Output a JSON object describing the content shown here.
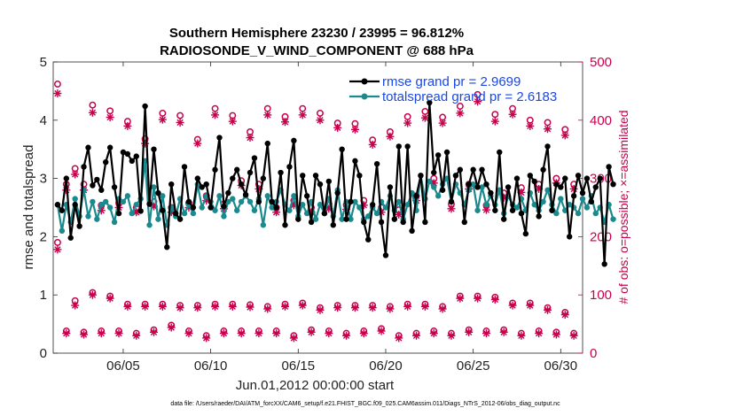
{
  "chart_data": {
    "type": "line",
    "title": "Southern Hemisphere 23230 / 23995 = 96.812%",
    "subtitle": "RADIOSONDE_V_WIND_COMPONENT @ 688 hPa",
    "xlabel": "Jun.01,2012 00:00:00 start",
    "ylabel": "rmse and totalspread",
    "ylabel_right": "# of obs: o=possible; ×=assimilated",
    "footnote": "data file: /Users/raeder/DAI/ATM_forcXX/CAM6_setup/f.e21.FHIST_BGC.f09_025.CAM6assim.011/Diags_NTrS_2012-06/obs_diag_output.nc",
    "xlim": [
      1.0,
      31.25
    ],
    "ylim": [
      0,
      5
    ],
    "ylim_right": [
      0,
      500
    ],
    "xticks": [
      5,
      10,
      15,
      20,
      25,
      30
    ],
    "xtick_labels": [
      "06/05",
      "06/10",
      "06/15",
      "06/20",
      "06/25",
      "06/30"
    ],
    "yticks": [
      0,
      1,
      2,
      3,
      4,
      5
    ],
    "ytick_labels": [
      "0",
      "1",
      "2",
      "3",
      "4",
      "5"
    ],
    "yticks_right": [
      0,
      100,
      200,
      300,
      400,
      500
    ],
    "ytick_labels_right": [
      "0",
      "100",
      "200",
      "300",
      "400",
      "500"
    ],
    "series": [
      {
        "name": "rmse",
        "legend": "rmse grand pr = 2.9699",
        "color": "#000000",
        "axis": "left",
        "start_day": 1.25,
        "step_days": 0.25,
        "values": [
          2.55,
          2.45,
          3.0,
          1.98,
          2.55,
          2.18,
          3.2,
          3.53,
          2.88,
          2.98,
          2.8,
          3.28,
          3.53,
          2.85,
          2.4,
          3.45,
          3.42,
          3.3,
          3.38,
          2.44,
          4.24,
          2.56,
          3.5,
          2.75,
          2.45,
          1.82,
          2.9,
          2.4,
          2.3,
          3.2,
          2.6,
          2.5,
          3.0,
          2.85,
          2.9,
          2.5,
          3.15,
          3.7,
          2.52,
          2.75,
          3.0,
          3.15,
          2.9,
          2.72,
          3.1,
          3.35,
          2.6,
          3.0,
          3.6,
          2.6,
          2.5,
          3.1,
          2.2,
          3.2,
          3.65,
          2.3,
          3.05,
          2.7,
          2.25,
          3.05,
          2.9,
          2.4,
          2.95,
          2.2,
          2.75,
          3.5,
          2.3,
          2.6,
          3.3,
          3.05,
          2.25,
          1.95,
          2.55,
          3.25,
          2.25,
          1.68,
          2.85,
          2.3,
          3.55,
          2.25,
          3.55,
          2.1,
          2.7,
          3.05,
          2.25,
          4.3,
          3.1,
          3.4,
          2.8,
          3.45,
          2.6,
          3.05,
          3.15,
          2.25,
          2.9,
          3.15,
          2.85,
          3.15,
          2.9,
          2.75,
          2.45,
          3.45,
          2.3,
          2.85,
          2.45,
          3.0,
          2.4,
          2.05,
          3.05,
          2.95,
          2.35,
          3.15,
          3.55,
          2.45,
          2.9,
          2.85,
          3.0,
          2.0,
          2.7,
          3.05,
          2.75,
          3.0,
          2.6,
          2.85,
          3.0,
          1.53,
          3.2,
          2.9
        ]
      },
      {
        "name": "totalspread",
        "legend": "totalspread grand pr = 2.6183",
        "color": "#1a8a8e",
        "axis": "left",
        "start_day": 1.25,
        "step_days": 0.25,
        "values": [
          2.55,
          2.1,
          2.55,
          2.25,
          2.65,
          2.35,
          2.8,
          2.35,
          2.6,
          2.3,
          2.55,
          2.6,
          2.5,
          2.25,
          2.65,
          2.6,
          2.7,
          2.4,
          2.55,
          2.65,
          3.3,
          2.2,
          2.85,
          2.3,
          2.7,
          2.2,
          2.5,
          2.35,
          2.65,
          2.4,
          2.55,
          2.4,
          2.9,
          2.5,
          2.7,
          2.6,
          2.45,
          2.7,
          2.35,
          2.6,
          2.65,
          2.45,
          2.6,
          2.7,
          2.6,
          2.45,
          2.65,
          2.2,
          2.7,
          2.5,
          2.6,
          2.8,
          2.55,
          2.45,
          2.7,
          2.35,
          2.55,
          2.4,
          2.6,
          2.3,
          2.55,
          2.4,
          2.65,
          2.35,
          2.8,
          2.3,
          2.6,
          2.3,
          2.6,
          2.5,
          2.3,
          2.35,
          2.5,
          2.4,
          2.6,
          2.5,
          2.7,
          2.45,
          2.6,
          2.3,
          2.55,
          2.75,
          2.45,
          3.05,
          2.65,
          2.95,
          2.85,
          2.7,
          2.9,
          3.0,
          2.6,
          2.9,
          2.75,
          2.55,
          2.8,
          2.9,
          2.45,
          2.85,
          2.55,
          2.7,
          2.55,
          2.8,
          2.4,
          2.7,
          2.55,
          2.5,
          2.65,
          2.45,
          2.75,
          2.55,
          2.45,
          2.6,
          2.8,
          2.55,
          2.4,
          2.65,
          2.45,
          2.55,
          2.5,
          2.4,
          2.65,
          2.5,
          2.7,
          2.4,
          2.5,
          2.25,
          2.55,
          2.3
        ]
      },
      {
        "name": "obs possible (high level)",
        "marker": "o",
        "color": "#c8004c",
        "axis": "right",
        "x": [
          1.25,
          2.25,
          3.25,
          4.25,
          5.25,
          6.25,
          7.25,
          8.25,
          9.25,
          10.25,
          11.25,
          12.25,
          13.25,
          14.25,
          15.25,
          16.25,
          17.25,
          18.25,
          19.25,
          20.25,
          21.25,
          22.25,
          23.25,
          24.25,
          25.25,
          26.25,
          27.25,
          28.25,
          29.25,
          30.25
        ],
        "values": [
          462,
          317,
          426,
          416,
          398,
          368,
          412,
          408,
          367,
          420,
          408,
          380,
          420,
          406,
          420,
          412,
          395,
          394,
          366,
          380,
          406,
          415,
          405,
          424,
          444,
          410,
          420,
          400,
          396,
          384
        ]
      },
      {
        "name": "obs assimilated (high level)",
        "marker": "*",
        "color": "#c8004c",
        "axis": "right",
        "x": [
          1.25,
          2.25,
          3.25,
          4.25,
          5.25,
          6.25,
          7.25,
          8.25,
          9.25,
          10.25,
          11.25,
          12.25,
          13.25,
          14.25,
          15.25,
          16.25,
          17.25,
          18.25,
          19.25,
          20.25,
          21.25,
          22.25,
          23.25,
          24.25,
          25.25,
          26.25,
          27.25,
          28.25,
          29.25,
          30.25
        ],
        "values": [
          446,
          307,
          413,
          405,
          390,
          360,
          401,
          396,
          360,
          409,
          398,
          370,
          409,
          397,
          409,
          400,
          387,
          384,
          358,
          372,
          395,
          404,
          395,
          412,
          432,
          398,
          410,
          390,
          385,
          374
        ]
      },
      {
        "name": "obs possible (mid level)",
        "marker": "o",
        "color": "#c8004c",
        "axis": "right",
        "x": [
          1.75,
          2.75,
          3.75,
          4.75,
          5.75,
          6.75,
          7.75,
          8.75,
          9.75,
          10.75,
          11.75,
          12.75,
          13.75,
          14.75,
          15.75,
          16.75,
          17.75,
          18.75,
          19.75,
          20.75,
          21.75,
          22.75,
          23.75,
          24.75,
          25.75,
          26.75,
          27.75,
          28.75,
          29.75,
          30.75
        ],
        "values": [
          290,
          290,
          254,
          258,
          250,
          260,
          250,
          258,
          270,
          256,
          296,
          290,
          250,
          262,
          250,
          256,
          255,
          262,
          250,
          246,
          270,
          300,
          256,
          290,
          254,
          275,
          284,
          290,
          300,
          290
        ]
      },
      {
        "name": "obs assimilated (mid level)",
        "marker": "*",
        "color": "#c8004c",
        "axis": "right",
        "x": [
          1.75,
          2.75,
          3.75,
          4.75,
          5.75,
          6.75,
          7.75,
          8.75,
          9.75,
          10.75,
          11.75,
          12.75,
          13.75,
          14.75,
          15.75,
          16.75,
          17.75,
          18.75,
          19.75,
          20.75,
          21.75,
          22.75,
          23.75,
          24.75,
          25.75,
          26.75,
          27.75,
          28.75,
          29.75,
          30.75
        ],
        "values": [
          280,
          280,
          245,
          250,
          242,
          252,
          242,
          250,
          262,
          248,
          288,
          282,
          242,
          254,
          242,
          248,
          247,
          254,
          242,
          238,
          262,
          292,
          248,
          282,
          246,
          267,
          276,
          282,
          292,
          282
        ]
      },
      {
        "name": "obs possible (low level)",
        "marker": "o",
        "color": "#c8004c",
        "axis": "right",
        "x": [
          1.25,
          2.25,
          3.25,
          4.25,
          5.25,
          6.25,
          7.25,
          8.25,
          9.25,
          10.25,
          11.25,
          12.25,
          13.25,
          14.25,
          15.25,
          16.25,
          17.25,
          18.25,
          19.25,
          20.25,
          21.25,
          22.25,
          23.25,
          24.25,
          25.25,
          26.25,
          27.25,
          28.25,
          29.25,
          30.25
        ],
        "values": [
          190,
          90,
          104,
          98,
          84,
          84,
          84,
          82,
          82,
          84,
          84,
          83,
          80,
          84,
          86,
          78,
          82,
          82,
          82,
          80,
          84,
          84,
          80,
          98,
          98,
          96,
          86,
          86,
          78,
          70
        ]
      },
      {
        "name": "obs assimilated (low level)",
        "marker": "*",
        "color": "#c8004c",
        "axis": "right",
        "x": [
          1.25,
          2.25,
          3.25,
          4.25,
          5.25,
          6.25,
          7.25,
          8.25,
          9.25,
          10.25,
          11.25,
          12.25,
          13.25,
          14.25,
          15.25,
          16.25,
          17.25,
          18.25,
          19.25,
          20.25,
          21.25,
          22.25,
          23.25,
          24.25,
          25.25,
          26.25,
          27.25,
          28.25,
          29.25,
          30.25
        ],
        "values": [
          178,
          82,
          100,
          94,
          80,
          80,
          80,
          78,
          78,
          80,
          80,
          79,
          76,
          80,
          82,
          74,
          78,
          78,
          78,
          76,
          80,
          80,
          76,
          94,
          94,
          92,
          82,
          82,
          74,
          66
        ]
      },
      {
        "name": "obs possible (lowest level)",
        "marker": "o",
        "color": "#c8004c",
        "axis": "right",
        "x": [
          1.75,
          2.75,
          3.75,
          4.75,
          5.75,
          6.75,
          7.75,
          8.75,
          9.75,
          10.75,
          11.75,
          12.75,
          13.75,
          14.75,
          15.75,
          16.75,
          17.75,
          18.75,
          19.75,
          20.75,
          21.75,
          22.75,
          23.75,
          24.75,
          25.75,
          26.75,
          27.75,
          28.75,
          29.75,
          30.75
        ],
        "values": [
          38,
          36,
          38,
          38,
          34,
          40,
          48,
          38,
          30,
          38,
          38,
          38,
          38,
          30,
          40,
          38,
          34,
          38,
          42,
          30,
          34,
          38,
          34,
          40,
          38,
          40,
          34,
          38,
          36,
          34
        ]
      },
      {
        "name": "obs assimilated (lowest level)",
        "marker": "*",
        "color": "#c8004c",
        "axis": "right",
        "x": [
          1.75,
          2.75,
          3.75,
          4.75,
          5.75,
          6.75,
          7.75,
          8.75,
          9.75,
          10.75,
          11.75,
          12.75,
          13.75,
          14.75,
          15.75,
          16.75,
          17.75,
          18.75,
          19.75,
          20.75,
          21.75,
          22.75,
          23.75,
          24.75,
          25.75,
          26.75,
          27.75,
          28.75,
          29.75,
          30.75
        ],
        "values": [
          34,
          32,
          34,
          34,
          30,
          36,
          44,
          34,
          26,
          34,
          34,
          34,
          34,
          26,
          36,
          34,
          30,
          34,
          38,
          26,
          30,
          34,
          30,
          36,
          34,
          36,
          30,
          34,
          32,
          30
        ]
      }
    ]
  }
}
